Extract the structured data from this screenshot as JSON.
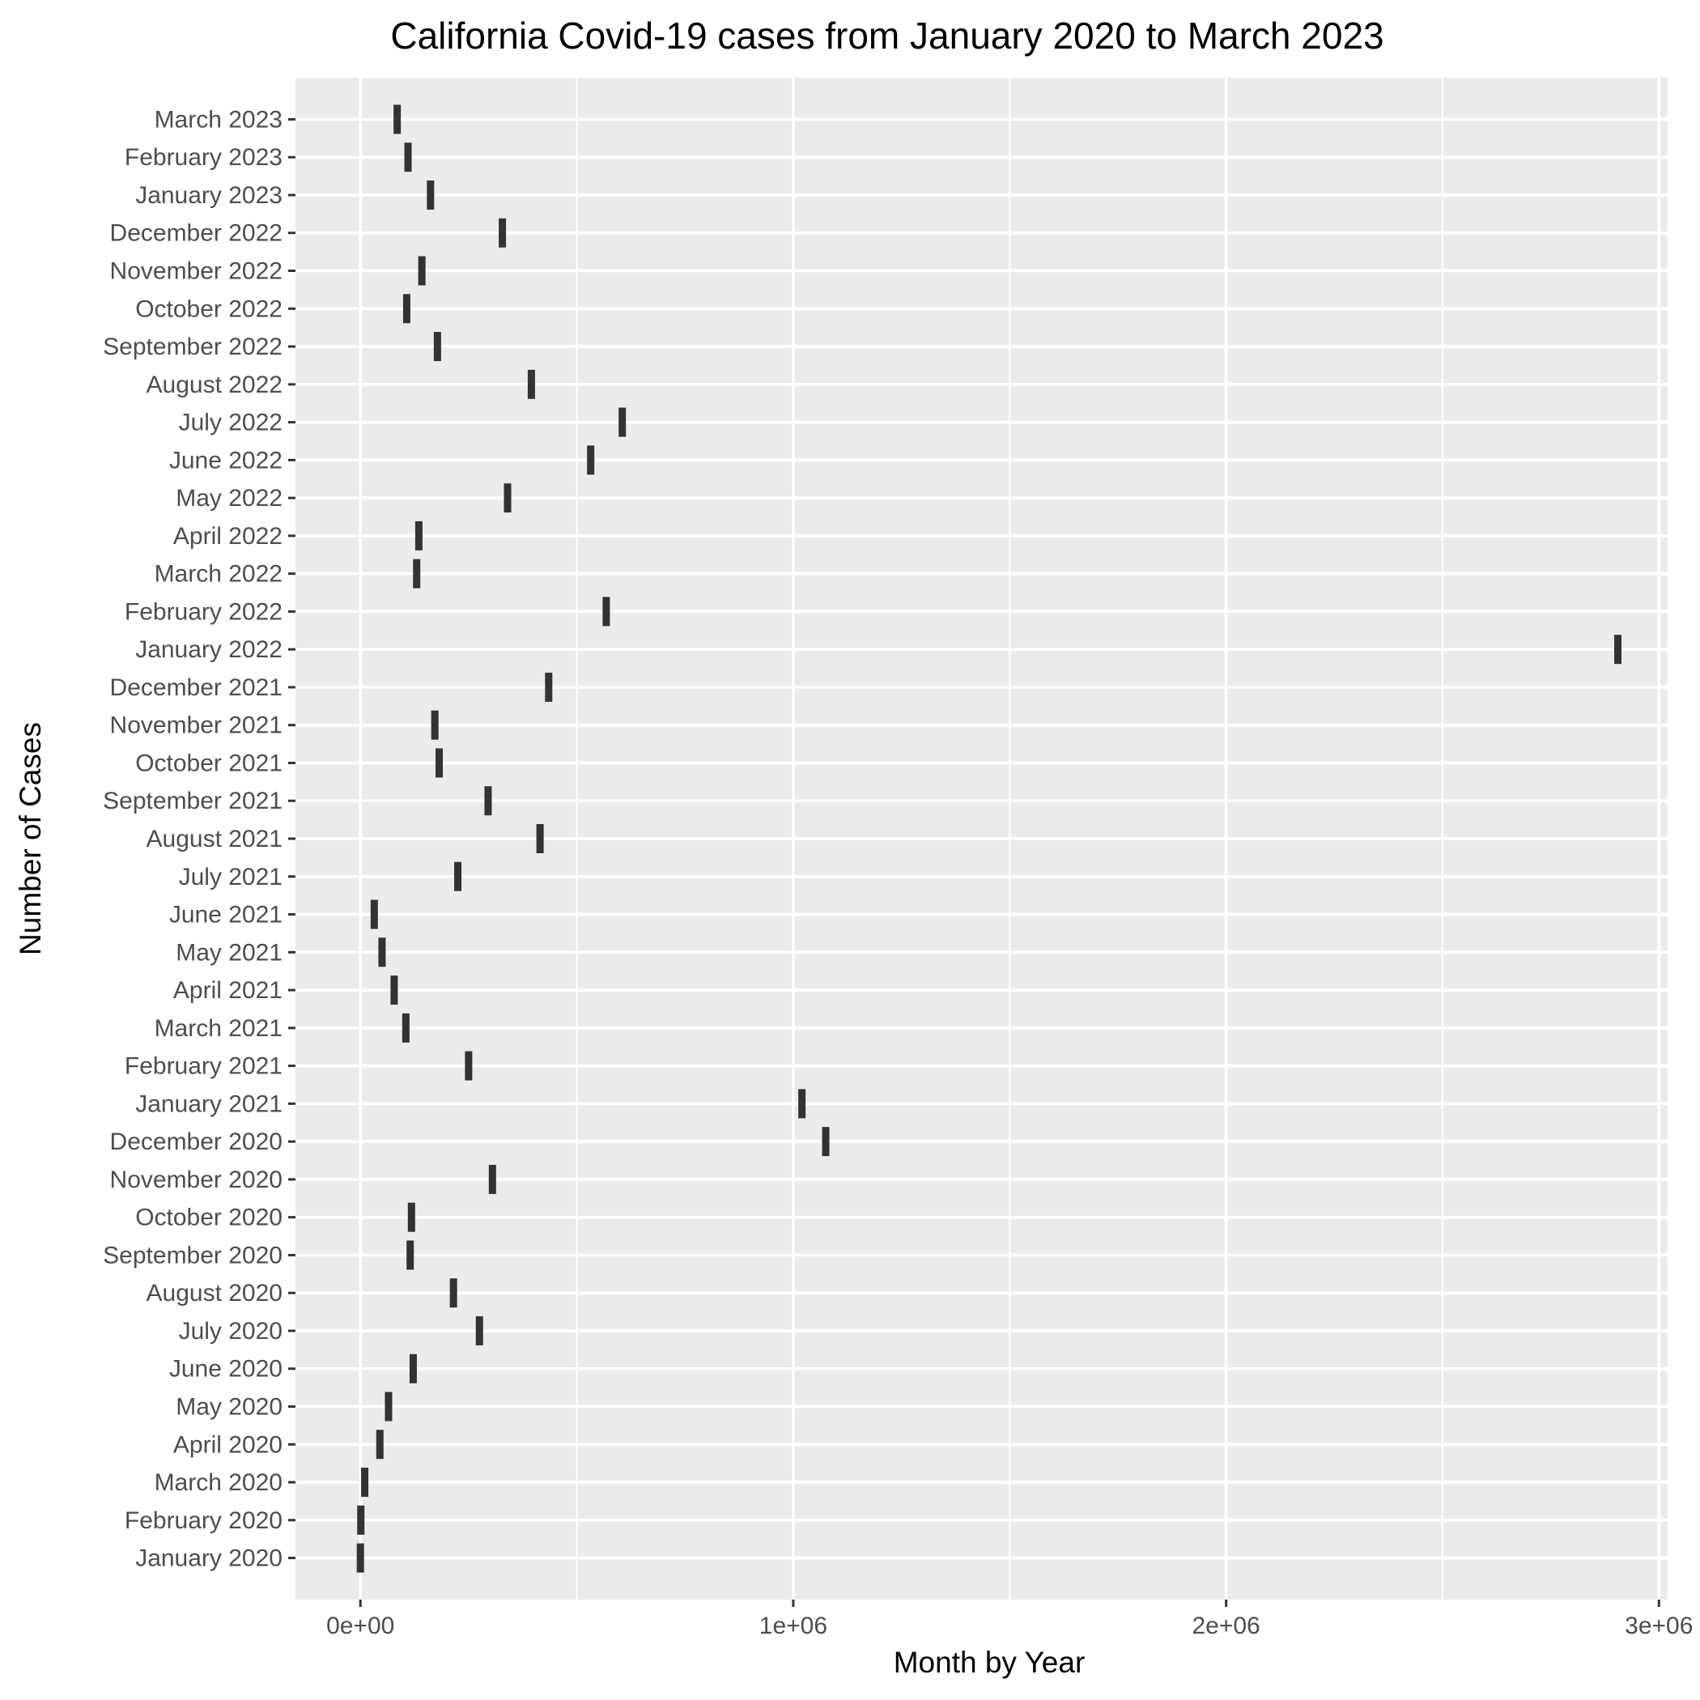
{
  "chart_data": {
    "type": "scatter",
    "title": "California Covid-19 cases from January 2020 to March 2023",
    "xlabel": "Month by Year",
    "ylabel": "Number of Cases",
    "xlim": [
      -150000,
      3020000
    ],
    "x_ticks": [
      0,
      1000000,
      2000000,
      3000000
    ],
    "x_tick_labels": [
      "0e+00",
      "1e+06",
      "2e+06",
      "3e+06"
    ],
    "grid": true,
    "legend": "none",
    "colors": {
      "panel": "#ebebeb",
      "grid": "#ffffff",
      "mark": "#333333",
      "tick_text": "#4d4d4d"
    },
    "categories": [
      "January 2020",
      "February 2020",
      "March 2020",
      "April 2020",
      "May 2020",
      "June 2020",
      "July 2020",
      "August 2020",
      "September 2020",
      "October 2020",
      "November 2020",
      "December 2020",
      "January 2021",
      "February 2021",
      "March 2021",
      "April 2021",
      "May 2021",
      "June 2021",
      "July 2021",
      "August 2021",
      "September 2021",
      "October 2021",
      "November 2021",
      "December 2021",
      "January 2022",
      "February 2022",
      "March 2022",
      "April 2022",
      "May 2022",
      "June 2022",
      "July 2022",
      "August 2022",
      "September 2022",
      "October 2022",
      "November 2022",
      "December 2022",
      "January 2023",
      "February 2023",
      "March 2023"
    ],
    "values": [
      0,
      1000,
      10000,
      45000,
      65000,
      122000,
      275000,
      215000,
      115000,
      118000,
      305000,
      1075000,
      1020000,
      250000,
      105000,
      78000,
      50000,
      32000,
      225000,
      415000,
      295000,
      182000,
      172000,
      435000,
      2905000,
      568000,
      130000,
      135000,
      340000,
      532000,
      605000,
      395000,
      178000,
      107000,
      142000,
      328000,
      162000,
      110000,
      85000
    ]
  }
}
